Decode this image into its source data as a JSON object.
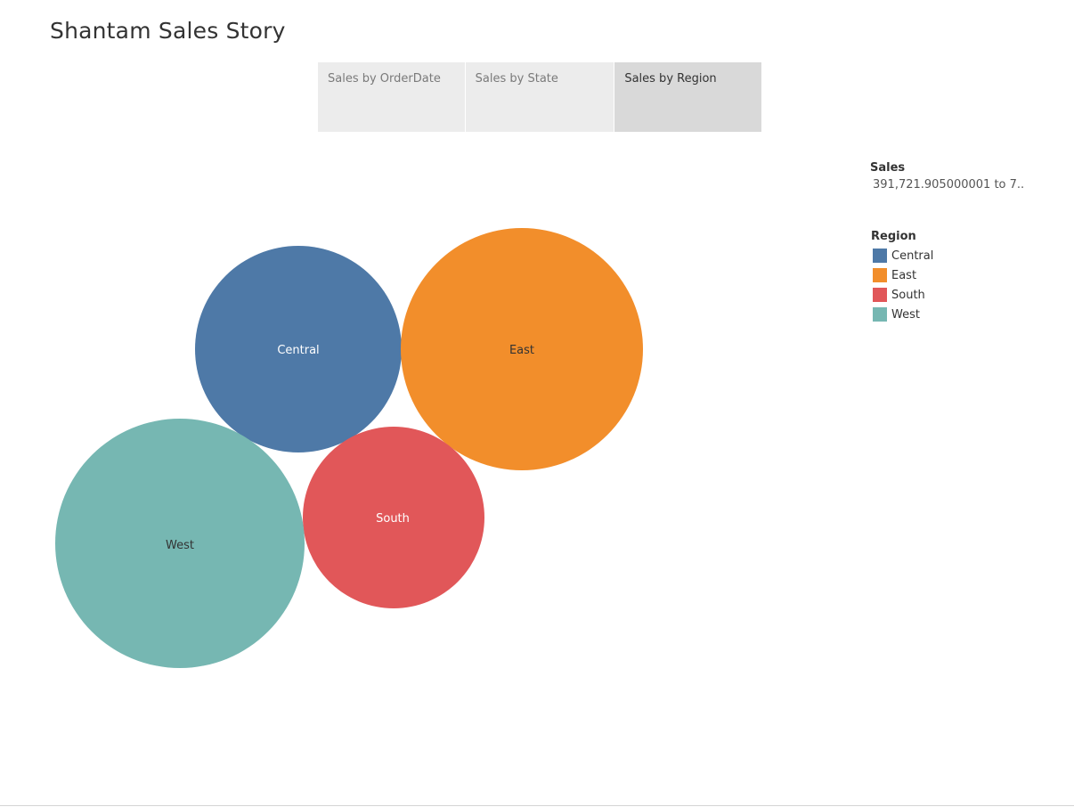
{
  "story": {
    "title": "Shantam Sales Story"
  },
  "story_points": [
    {
      "label": "Sales by OrderDate",
      "active": false
    },
    {
      "label": "Sales by State",
      "active": false
    },
    {
      "label": "Sales by Region",
      "active": true
    }
  ],
  "legends": {
    "size": {
      "title": "Sales",
      "range_text": "391,721.905000001 to 7.."
    },
    "color": {
      "title": "Region",
      "items": [
        {
          "label": "Central",
          "color": "#4e79a7"
        },
        {
          "label": "East",
          "color": "#f28e2b"
        },
        {
          "label": "South",
          "color": "#e15759"
        },
        {
          "label": "West",
          "color": "#76b7b2"
        }
      ]
    }
  },
  "chart_data": {
    "type": "packed-bubble",
    "size_field": "Sales",
    "color_field": "Region",
    "series": [
      {
        "name": "Central",
        "label_color": "#ffffff",
        "color": "#4e79a7"
      },
      {
        "name": "East",
        "label_color": "#333333",
        "color": "#f28e2b"
      },
      {
        "name": "South",
        "label_color": "#ffffff",
        "color": "#e15759"
      },
      {
        "name": "West",
        "label_color": "#333333",
        "color": "#76b7b2"
      }
    ]
  }
}
